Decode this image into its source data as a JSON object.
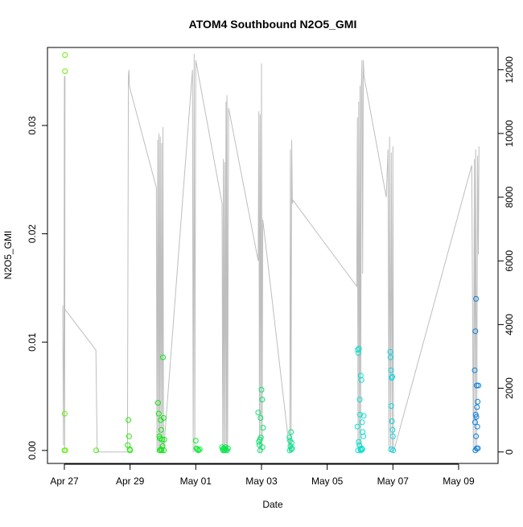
{
  "chart_data": {
    "type": "scatter",
    "title": "ATOM4 Southbound N2O5_GMI",
    "xlabel": "Date",
    "ylabel": "N2O5_GMI",
    "x_ticks": [
      "Apr 27",
      "Apr 29",
      "May 01",
      "May 03",
      "May 05",
      "May 07",
      "May 09"
    ],
    "y_ticks": [
      "0.00",
      "0.01",
      "0.02",
      "0.03"
    ],
    "y2_ticks": [
      "0",
      "2000",
      "4000",
      "6000",
      "8000",
      "10000",
      "12000"
    ],
    "x_range_days": [
      "2018-04-26T19:00",
      "2018-05-09T19:00"
    ],
    "ylim": [
      -0.0012,
      0.0372
    ],
    "y2lim": [
      -360,
      12700
    ],
    "grid": false,
    "point_color_scale": "time: green to blue",
    "series": [
      {
        "role": "N2O5_GMI points (left axis), x in days since Apr 27 00:00",
        "points": [
          [
            0.02,
            0.0365
          ],
          [
            0.02,
            0.035
          ],
          [
            0.01,
            0.0034
          ],
          [
            0.0,
            0.0
          ],
          [
            0.03,
            0.0
          ],
          [
            0.97,
            0.0
          ],
          [
            1.95,
            0.0028
          ],
          [
            1.97,
            0.0013
          ],
          [
            1.93,
            0.0005
          ],
          [
            1.99,
            0.0001
          ],
          [
            2.0,
            0.0
          ],
          [
            2.85,
            0.0044
          ],
          [
            2.87,
            0.0034
          ],
          [
            2.89,
            0.0013
          ],
          [
            2.91,
            0.0011
          ],
          [
            2.93,
            0.0028
          ],
          [
            2.95,
            0.0019
          ],
          [
            2.97,
            0.001
          ],
          [
            2.99,
            0.0004
          ],
          [
            2.94,
            0.0001
          ],
          [
            2.96,
            0.0
          ],
          [
            3.0,
            0.0086
          ],
          [
            3.02,
            0.003
          ],
          [
            3.04,
            0.001
          ],
          [
            2.9,
            0.0
          ],
          [
            3.03,
            0.0
          ],
          [
            4.0,
            0.0009
          ],
          [
            4.02,
            0.0002
          ],
          [
            4.05,
            0.0001
          ],
          [
            4.08,
            0.0
          ],
          [
            4.12,
            0.0001
          ],
          [
            4.8,
            0.0003
          ],
          [
            4.82,
            0.0001
          ],
          [
            4.85,
            0.0002
          ],
          [
            4.88,
            0.0
          ],
          [
            4.9,
            0.0003
          ],
          [
            4.92,
            0.0001
          ],
          [
            4.95,
            0.0
          ],
          [
            4.98,
            0.0002
          ],
          [
            4.84,
            0.0
          ],
          [
            5.9,
            0.0035
          ],
          [
            5.95,
            0.001
          ],
          [
            6.0,
            0.0056
          ],
          [
            6.02,
            0.0047
          ],
          [
            5.97,
            0.003
          ],
          [
            6.05,
            0.0021
          ],
          [
            5.92,
            0.0008
          ],
          [
            5.94,
            0.0005
          ],
          [
            5.98,
            0.0012
          ],
          [
            6.03,
            0.0003
          ],
          [
            5.96,
            0.0
          ],
          [
            6.85,
            0.0012
          ],
          [
            6.87,
            0.0009
          ],
          [
            6.9,
            0.0017
          ],
          [
            6.92,
            0.0007
          ],
          [
            6.88,
            0.0004
          ],
          [
            6.93,
            0.0002
          ],
          [
            6.86,
            0.0
          ],
          [
            6.91,
            0.0001
          ],
          [
            8.93,
            0.0093
          ],
          [
            8.95,
            0.009
          ],
          [
            8.97,
            0.0094
          ],
          [
            8.99,
            0.0047
          ],
          [
            9.0,
            0.0033
          ],
          [
            9.02,
            0.0069
          ],
          [
            9.04,
            0.0065
          ],
          [
            9.06,
            0.0026
          ],
          [
            9.08,
            0.0017
          ],
          [
            9.1,
            0.0013
          ],
          [
            9.11,
            0.0032
          ],
          [
            8.92,
            0.0022
          ],
          [
            8.96,
            0.0008
          ],
          [
            8.98,
            0.0005
          ],
          [
            9.01,
            0.0001
          ],
          [
            9.03,
            0.0
          ],
          [
            9.05,
            0.0002
          ],
          [
            8.94,
            0.0
          ],
          [
            9.07,
            0.0001
          ],
          [
            9.92,
            0.0091
          ],
          [
            9.93,
            0.0086
          ],
          [
            9.96,
            0.0067
          ],
          [
            9.98,
            0.0068
          ],
          [
            9.94,
            0.0074
          ],
          [
            9.95,
            0.0041
          ],
          [
            9.97,
            0.0027
          ],
          [
            9.99,
            0.0019
          ],
          [
            10.0,
            0.0013
          ],
          [
            9.95,
            0.0001
          ],
          [
            10.01,
            0.0
          ],
          [
            12.53,
            0.014
          ],
          [
            12.51,
            0.011
          ],
          [
            12.49,
            0.0074
          ],
          [
            12.55,
            0.006
          ],
          [
            12.6,
            0.006
          ],
          [
            12.58,
            0.0045
          ],
          [
            12.56,
            0.004
          ],
          [
            12.52,
            0.0033
          ],
          [
            12.54,
            0.0031
          ],
          [
            12.5,
            0.0026
          ],
          [
            12.57,
            0.0022
          ],
          [
            12.53,
            0.0013
          ],
          [
            12.55,
            0.0002
          ],
          [
            12.51,
            0.0
          ],
          [
            12.59,
            0.0002
          ]
        ]
      },
      {
        "role": "grey line (right axis), x in days since Apr 27 00:00",
        "points": [
          [
            -0.05,
            4600
          ],
          [
            -0.03,
            200
          ],
          [
            -0.01,
            4600
          ],
          [
            0.0,
            11800
          ],
          [
            0.01,
            0
          ],
          [
            0.02,
            11800
          ],
          [
            0.0,
            5300
          ],
          [
            0.0,
            4500
          ],
          [
            0.96,
            3200
          ],
          [
            1.0,
            0
          ],
          [
            1.92,
            0
          ],
          [
            1.95,
            11800
          ],
          [
            1.97,
            12000
          ],
          [
            1.98,
            11500
          ],
          [
            2.0,
            11400
          ],
          [
            2.8,
            8300
          ],
          [
            2.82,
            0
          ],
          [
            2.84,
            9800
          ],
          [
            2.86,
            0
          ],
          [
            2.88,
            10000
          ],
          [
            2.9,
            0
          ],
          [
            2.92,
            9900
          ],
          [
            2.94,
            0
          ],
          [
            2.96,
            9700
          ],
          [
            2.98,
            0
          ],
          [
            3.0,
            10200
          ],
          [
            3.02,
            0
          ],
          [
            3.9,
            12000
          ],
          [
            3.92,
            0
          ],
          [
            3.95,
            12500
          ],
          [
            3.97,
            0
          ],
          [
            4.0,
            12300
          ],
          [
            4.8,
            7800
          ],
          [
            4.82,
            0
          ],
          [
            4.84,
            9200
          ],
          [
            4.86,
            0
          ],
          [
            4.88,
            9100
          ],
          [
            4.9,
            0
          ],
          [
            4.92,
            11000
          ],
          [
            4.94,
            0
          ],
          [
            4.95,
            11200
          ],
          [
            4.97,
            0
          ],
          [
            5.0,
            10800
          ],
          [
            5.9,
            6000
          ],
          [
            5.92,
            10700
          ],
          [
            5.94,
            0
          ],
          [
            5.96,
            10600
          ],
          [
            5.98,
            0
          ],
          [
            6.0,
            12200
          ],
          [
            6.02,
            0
          ],
          [
            6.04,
            7300
          ],
          [
            6.86,
            0
          ],
          [
            6.88,
            9500
          ],
          [
            6.9,
            0
          ],
          [
            6.92,
            9800
          ],
          [
            6.94,
            7800
          ],
          [
            6.96,
            7900
          ],
          [
            8.9,
            5200
          ],
          [
            8.92,
            10500
          ],
          [
            8.94,
            0
          ],
          [
            8.96,
            11000
          ],
          [
            8.98,
            0
          ],
          [
            9.0,
            11500
          ],
          [
            9.02,
            0
          ],
          [
            9.04,
            11400
          ],
          [
            9.06,
            12300
          ],
          [
            9.08,
            5600
          ],
          [
            9.1,
            12300
          ],
          [
            9.12,
            11800
          ],
          [
            9.8,
            8000
          ],
          [
            9.85,
            9500
          ],
          [
            9.88,
            0
          ],
          [
            9.9,
            9900
          ],
          [
            9.93,
            0
          ],
          [
            9.95,
            9400
          ],
          [
            9.98,
            0
          ],
          [
            10.0,
            9600
          ],
          [
            10.02,
            0
          ],
          [
            12.4,
            9000
          ],
          [
            12.45,
            0
          ],
          [
            12.48,
            9200
          ],
          [
            12.5,
            0
          ],
          [
            12.52,
            9500
          ],
          [
            12.55,
            0
          ],
          [
            12.58,
            9300
          ],
          [
            12.6,
            6200
          ],
          [
            12.62,
            9600
          ]
        ]
      }
    ]
  }
}
